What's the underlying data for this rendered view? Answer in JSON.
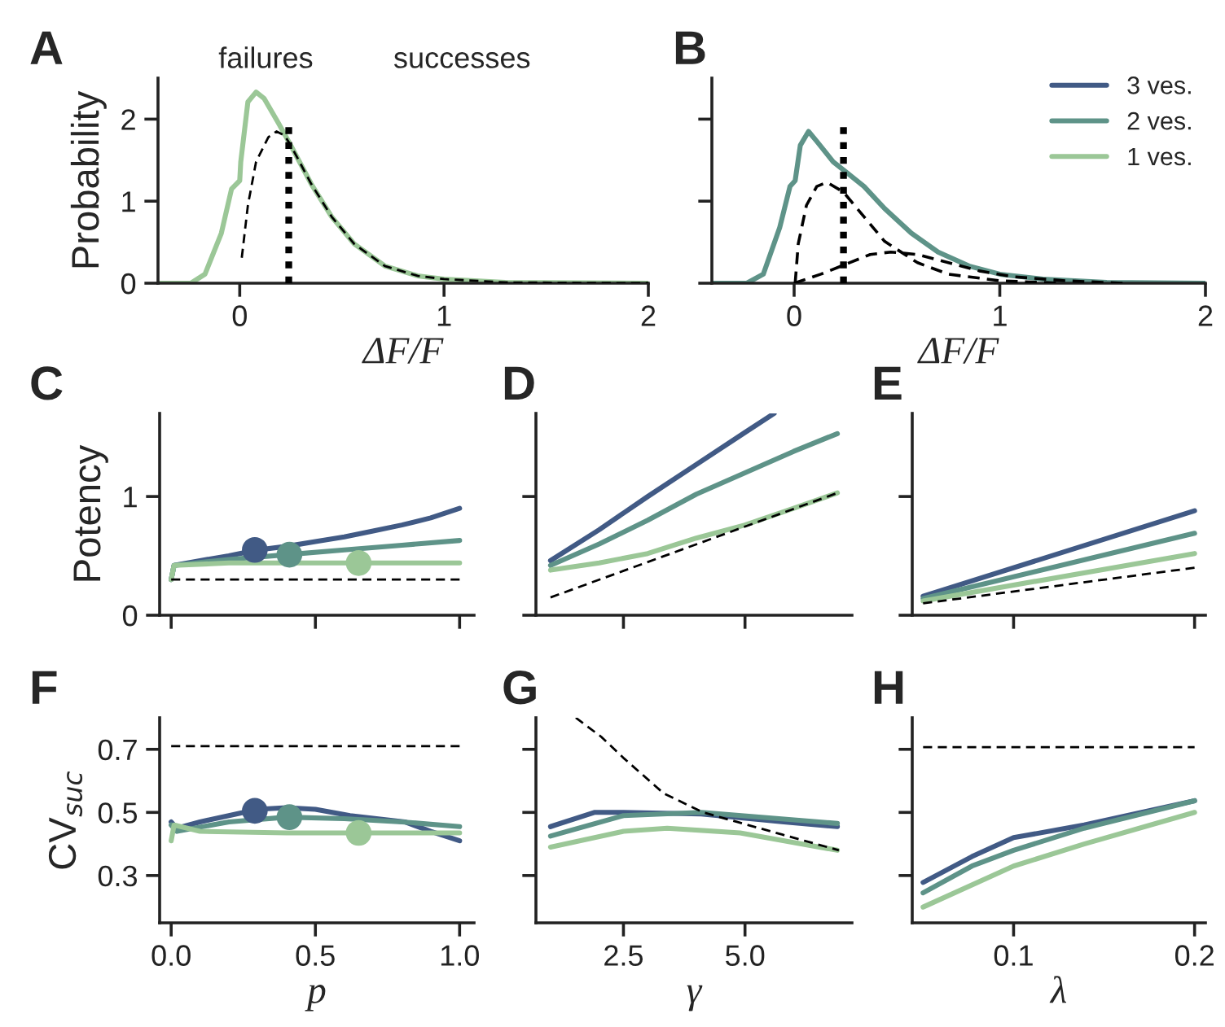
{
  "chart_data": [
    {
      "type": "line",
      "title": "A",
      "xlabel": "ΔF/F",
      "ylabel": "Probability",
      "xlim": [
        -0.4,
        2
      ],
      "ylim": [
        0,
        2.5
      ],
      "xticks": [
        0,
        1,
        2
      ],
      "yticks": [
        0,
        1,
        2
      ],
      "annotations": [
        "failures",
        "successes"
      ],
      "series": [
        {
          "color": "#9bc797",
          "x": [
            -0.4,
            -0.24,
            -0.17,
            -0.09,
            -0.04,
            0,
            0.005,
            0.04,
            0.08,
            0.12,
            0.19,
            0.25,
            0.35,
            0.45,
            0.56,
            0.71,
            0.87,
            1.0,
            1.3,
            2
          ],
          "values": [
            0,
            0,
            0.11,
            0.61,
            1.15,
            1.25,
            1.48,
            2.21,
            2.33,
            2.25,
            1.95,
            1.68,
            1.21,
            0.81,
            0.48,
            0.21,
            0.09,
            0.05,
            0.01,
            0
          ]
        },
        {
          "color": "#000000",
          "line_style": "dashed",
          "x": [
            0.01,
            0.04,
            0.08,
            0.14,
            0.18,
            0.22,
            0.25,
            0.35,
            0.45,
            0.56,
            0.71,
            0.87,
            1.0,
            1.3,
            2
          ],
          "values": [
            0.31,
            0.95,
            1.48,
            1.78,
            1.85,
            1.8,
            1.68,
            1.21,
            0.81,
            0.48,
            0.21,
            0.09,
            0.05,
            0.01,
            0
          ]
        },
        {
          "color": "#000000",
          "line_style": "dotted",
          "x": [
            0.24,
            0.24
          ],
          "values": [
            0,
            1.98
          ]
        }
      ]
    },
    {
      "type": "line",
      "title": "B",
      "xlabel": "ΔF/F",
      "xlim": [
        -0.4,
        2
      ],
      "ylim": [
        0,
        2.5
      ],
      "xticks": [
        0,
        1,
        2
      ],
      "yticks": [
        0,
        1,
        2
      ],
      "tick_labels": "x",
      "legend": "top right",
      "series": [
        {
          "name": "3 ves.",
          "color": "#415a85"
        },
        {
          "name": "2 ves.",
          "color": "#5e9388",
          "x": [
            -0.4,
            -0.23,
            -0.15,
            -0.07,
            -0.02,
            0.005,
            0.03,
            0.07,
            0.11,
            0.19,
            0.25,
            0.34,
            0.44,
            0.57,
            0.7,
            0.85,
            1.0,
            1.21,
            1.52,
            2
          ],
          "values": [
            0,
            0,
            0.11,
            0.68,
            1.18,
            1.25,
            1.68,
            1.85,
            1.73,
            1.48,
            1.36,
            1.18,
            0.91,
            0.61,
            0.38,
            0.21,
            0.11,
            0.05,
            0.01,
            0
          ]
        },
        {
          "name": "1 ves.",
          "color": "#9bc797"
        },
        {
          "color": "#000000",
          "line_style": "dashed",
          "x": [
            0.005,
            0.02,
            0.06,
            0.11,
            0.16,
            0.24,
            0.34,
            0.44,
            0.6,
            0.75,
            1.0,
            1.3
          ],
          "values": [
            0,
            0.48,
            0.95,
            1.18,
            1.23,
            1.11,
            0.81,
            0.51,
            0.25,
            0.11,
            0.03,
            0
          ]
        },
        {
          "color": "#000000",
          "line_style": "dashed",
          "x": [
            0,
            0.13,
            0.25,
            0.37,
            0.47,
            0.6,
            0.75,
            0.9,
            1.06,
            1.32,
            1.6
          ],
          "values": [
            0,
            0.11,
            0.23,
            0.35,
            0.38,
            0.35,
            0.25,
            0.15,
            0.08,
            0.03,
            0
          ]
        },
        {
          "color": "#000000",
          "line_style": "dotted",
          "x": [
            0.24,
            0.24
          ],
          "values": [
            0,
            1.98
          ]
        }
      ]
    },
    {
      "type": "line",
      "title": "C",
      "ylabel": "Potency",
      "xlim": [
        -0.04,
        1.05
      ],
      "ylim": [
        0,
        1.7
      ],
      "xticks": [
        0,
        0.5,
        1
      ],
      "yticks": [
        0,
        1
      ],
      "tick_labels": "y",
      "series": [
        {
          "color": "#000000",
          "line_style": "dashed",
          "x": [
            0,
            1
          ],
          "values": [
            0.3,
            0.3
          ]
        },
        {
          "color": "#415a85",
          "x": [
            0,
            0.01,
            0.1,
            0.2,
            0.3,
            0.4,
            0.5,
            0.6,
            0.7,
            0.8,
            0.9,
            1.0
          ],
          "values": [
            0.3,
            0.42,
            0.46,
            0.5,
            0.55,
            0.58,
            0.62,
            0.66,
            0.71,
            0.76,
            0.82,
            0.9
          ]
        },
        {
          "color": "#5e9388",
          "x": [
            0,
            0.01,
            0.2,
            0.4,
            0.6,
            0.8,
            1.0
          ],
          "values": [
            0.3,
            0.42,
            0.47,
            0.51,
            0.55,
            0.59,
            0.63
          ]
        },
        {
          "color": "#9bc797",
          "x": [
            0,
            0.01,
            0.2,
            1.0
          ],
          "values": [
            0.3,
            0.42,
            0.44,
            0.44
          ]
        },
        {
          "type": "scatter",
          "marker": "circle",
          "color": "#415a85",
          "x": [
            0.29
          ],
          "values": [
            0.55
          ]
        },
        {
          "type": "scatter",
          "marker": "circle",
          "color": "#5e9388",
          "x": [
            0.41
          ],
          "values": [
            0.51
          ]
        },
        {
          "type": "scatter",
          "marker": "circle",
          "color": "#9bc797",
          "x": [
            0.65
          ],
          "values": [
            0.44
          ]
        }
      ]
    },
    {
      "type": "line",
      "title": "D",
      "xlim": [
        0.7,
        7.2
      ],
      "ylim": [
        0,
        1.7
      ],
      "xticks": [
        2.5,
        5
      ],
      "yticks": [
        0,
        1
      ],
      "tick_labels": false,
      "series": [
        {
          "color": "#000000",
          "line_style": "dashed",
          "x": [
            1,
            6.9
          ],
          "values": [
            0.15,
            1.03
          ]
        },
        {
          "color": "#415a85",
          "x": [
            1,
            2,
            3,
            4,
            5,
            5.6
          ],
          "values": [
            0.46,
            0.72,
            1.0,
            1.27,
            1.54,
            1.7
          ]
        },
        {
          "color": "#5e9388",
          "x": [
            1,
            2,
            3,
            4,
            5,
            6,
            6.9
          ],
          "values": [
            0.42,
            0.6,
            0.8,
            1.02,
            1.2,
            1.38,
            1.53
          ]
        },
        {
          "color": "#9bc797",
          "x": [
            1,
            2,
            3,
            4,
            5,
            6,
            6.9
          ],
          "values": [
            0.38,
            0.44,
            0.52,
            0.65,
            0.76,
            0.9,
            1.03
          ]
        }
      ]
    },
    {
      "type": "line",
      "title": "E",
      "xlim": [
        0.044,
        0.206
      ],
      "ylim": [
        0,
        1.7
      ],
      "xticks": [
        0.1,
        0.2
      ],
      "yticks": [
        0,
        1
      ],
      "tick_labels": false,
      "series": [
        {
          "color": "#000000",
          "line_style": "dashed",
          "x": [
            0.05,
            0.2
          ],
          "values": [
            0.1,
            0.4
          ]
        },
        {
          "color": "#415a85",
          "x": [
            0.05,
            0.2
          ],
          "values": [
            0.16,
            0.88
          ]
        },
        {
          "color": "#5e9388",
          "x": [
            0.05,
            0.2
          ],
          "values": [
            0.14,
            0.69
          ]
        },
        {
          "color": "#9bc797",
          "x": [
            0.05,
            0.2
          ],
          "values": [
            0.12,
            0.52
          ]
        }
      ]
    },
    {
      "type": "line",
      "title": "F",
      "xlabel": "p",
      "ylabel": "CV$_{suc}$",
      "xlim": [
        -0.04,
        1.05
      ],
      "ylim": [
        0.15,
        0.8
      ],
      "xticks": [
        {
          "value": 0,
          "label": "0.0"
        },
        {
          "value": 0.5,
          "label": "0.5"
        },
        {
          "value": 1,
          "label": "1.0"
        }
      ],
      "yticks": [
        0.3,
        0.5,
        0.7
      ],
      "series": [
        {
          "color": "#000000",
          "line_style": "dashed",
          "x": [
            0,
            1
          ],
          "values": [
            0.71,
            0.71
          ]
        },
        {
          "color": "#415a85",
          "x": [
            0,
            0.02,
            0.1,
            0.2,
            0.3,
            0.4,
            0.5,
            0.62,
            0.81,
            0.9,
            1.0
          ],
          "values": [
            0.47,
            0.45,
            0.47,
            0.49,
            0.51,
            0.515,
            0.51,
            0.49,
            0.47,
            0.44,
            0.41
          ]
        },
        {
          "color": "#5e9388",
          "x": [
            0,
            0.02,
            0.2,
            0.4,
            0.6,
            0.8,
            1.0
          ],
          "values": [
            0.46,
            0.44,
            0.47,
            0.485,
            0.48,
            0.47,
            0.455
          ]
        },
        {
          "color": "#9bc797",
          "x": [
            0,
            0.01,
            0.1,
            0.4,
            1.0
          ],
          "values": [
            0.41,
            0.46,
            0.44,
            0.435,
            0.435
          ]
        },
        {
          "type": "scatter",
          "marker": "circle",
          "color": "#415a85",
          "x": [
            0.29
          ],
          "values": [
            0.505
          ]
        },
        {
          "type": "scatter",
          "marker": "circle",
          "color": "#5e9388",
          "x": [
            0.41
          ],
          "values": [
            0.485
          ]
        },
        {
          "type": "scatter",
          "marker": "circle",
          "color": "#9bc797",
          "x": [
            0.65
          ],
          "values": [
            0.435
          ]
        }
      ]
    },
    {
      "type": "line",
      "title": "G",
      "xlabel": "γ",
      "xlim": [
        0.7,
        7.2
      ],
      "ylim": [
        0.15,
        0.8
      ],
      "xticks": [
        2.5,
        {
          "value": 5,
          "label": "5.0"
        }
      ],
      "yticks": [
        0.3,
        0.5,
        0.7
      ],
      "tick_labels": "x",
      "series": [
        {
          "color": "#000000",
          "line_style": "dashed",
          "x": [
            1.52,
            2.04,
            2.52,
            3.33,
            4.14,
            5.76,
            6.93
          ],
          "values": [
            0.8,
            0.74,
            0.67,
            0.56,
            0.5,
            0.43,
            0.38
          ]
        },
        {
          "color": "#415a85",
          "x": [
            1,
            1.9,
            2.5,
            4.1,
            5.8,
            6.9
          ],
          "values": [
            0.455,
            0.5,
            0.5,
            0.495,
            0.47,
            0.455
          ]
        },
        {
          "color": "#5e9388",
          "x": [
            1,
            2.5,
            4.1,
            6.9
          ],
          "values": [
            0.425,
            0.49,
            0.5,
            0.465
          ]
        },
        {
          "color": "#9bc797",
          "x": [
            1,
            2.5,
            3.4,
            4.9,
            6.9
          ],
          "values": [
            0.39,
            0.44,
            0.45,
            0.435,
            0.38
          ]
        }
      ]
    },
    {
      "type": "line",
      "title": "H",
      "xlabel": "λ",
      "xlim": [
        0.044,
        0.206
      ],
      "ylim": [
        0.15,
        0.8
      ],
      "xticks": [
        0.1,
        0.2
      ],
      "yticks": [
        0.3,
        0.5,
        0.7
      ],
      "tick_labels": "x",
      "series": [
        {
          "color": "#000000",
          "line_style": "dashed",
          "x": [
            0.05,
            0.2
          ],
          "values": [
            0.707,
            0.707
          ]
        },
        {
          "color": "#415a85",
          "x": [
            0.05,
            0.077,
            0.1,
            0.139,
            0.2
          ],
          "values": [
            0.278,
            0.36,
            0.42,
            0.46,
            0.537
          ]
        },
        {
          "color": "#5e9388",
          "x": [
            0.05,
            0.077,
            0.1,
            0.139,
            0.2
          ],
          "values": [
            0.245,
            0.33,
            0.38,
            0.45,
            0.537
          ]
        },
        {
          "color": "#9bc797",
          "x": [
            0.05,
            0.1,
            0.139,
            0.2
          ],
          "values": [
            0.2,
            0.33,
            0.4,
            0.5
          ]
        }
      ]
    }
  ]
}
